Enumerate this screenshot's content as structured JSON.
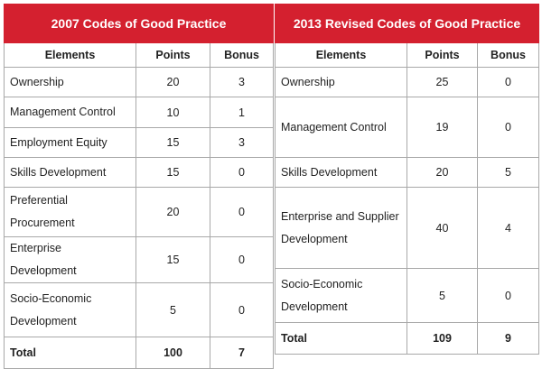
{
  "left": {
    "title": "2007 Codes of Good Practice",
    "columns": [
      "Elements",
      "Points",
      "Bonus"
    ],
    "rows": [
      [
        "Ownership",
        20,
        3
      ],
      [
        "Management Control",
        10,
        1
      ],
      [
        "Employment Equity",
        15,
        3
      ],
      [
        "Skills Development",
        15,
        0
      ],
      [
        "Preferential Procurement",
        20,
        0
      ],
      [
        "Enterprise Development",
        15,
        0
      ],
      [
        "Socio-Economic Development",
        5,
        0
      ]
    ],
    "total": [
      "Total",
      100,
      7
    ]
  },
  "right": {
    "title": "2013 Revised Codes of Good Practice",
    "columns": [
      "Elements",
      "Points",
      "Bonus"
    ],
    "rows": [
      [
        "Ownership",
        25,
        0
      ],
      [
        "Management Control",
        19,
        0
      ],
      [
        "Skills Development",
        20,
        5
      ],
      [
        "Enterprise and Supplier Development",
        40,
        4
      ],
      [
        "Socio-Economic Development",
        5,
        0
      ]
    ],
    "total": [
      "Total",
      109,
      9
    ]
  }
}
